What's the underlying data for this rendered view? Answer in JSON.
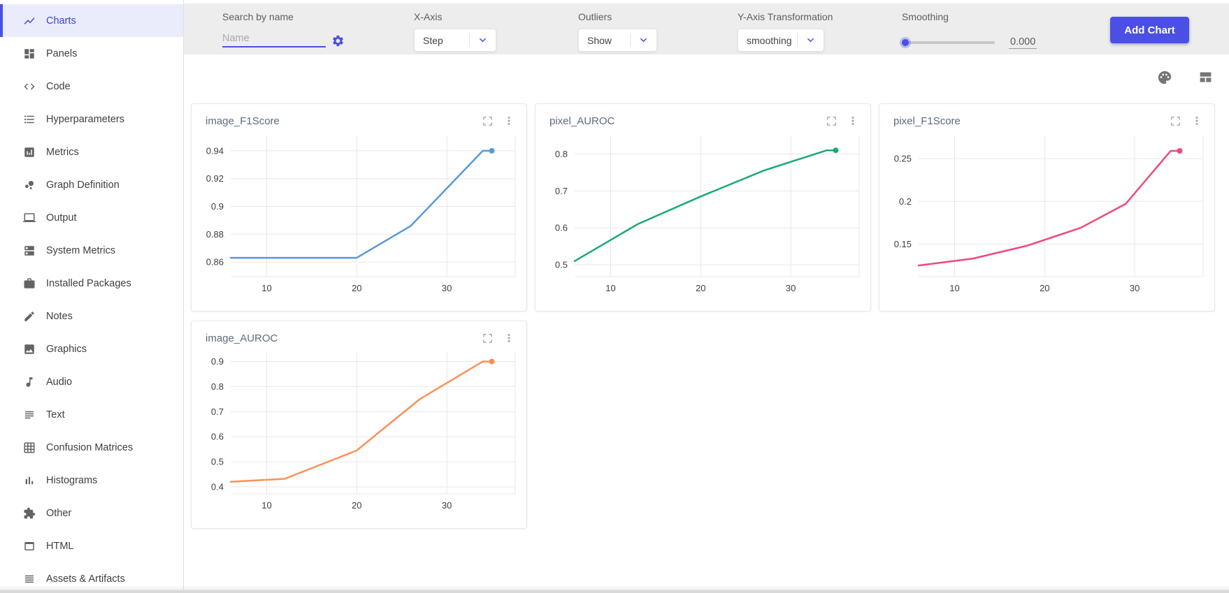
{
  "sidebar": {
    "active_color": "#4B4FE4",
    "items": [
      {
        "label": "Charts",
        "icon": "line-chart-icon",
        "active": true
      },
      {
        "label": "Panels",
        "icon": "dashboard-icon",
        "active": false
      },
      {
        "label": "Code",
        "icon": "code-icon",
        "active": false
      },
      {
        "label": "Hyperparameters",
        "icon": "list-icon",
        "active": false
      },
      {
        "label": "Metrics",
        "icon": "metrics-table-icon",
        "active": false
      },
      {
        "label": "Graph Definition",
        "icon": "bubble-chart-icon",
        "active": false
      },
      {
        "label": "Output",
        "icon": "laptop-icon",
        "active": false
      },
      {
        "label": "System Metrics",
        "icon": "server-icon",
        "active": false
      },
      {
        "label": "Installed Packages",
        "icon": "briefcase-icon",
        "active": false
      },
      {
        "label": "Notes",
        "icon": "pencil-icon",
        "active": false
      },
      {
        "label": "Graphics",
        "icon": "image-icon",
        "active": false
      },
      {
        "label": "Audio",
        "icon": "music-note-icon",
        "active": false
      },
      {
        "label": "Text",
        "icon": "text-lines-icon",
        "active": false
      },
      {
        "label": "Confusion Matrices",
        "icon": "grid-icon",
        "active": false
      },
      {
        "label": "Histograms",
        "icon": "histogram-icon",
        "active": false
      },
      {
        "label": "Other",
        "icon": "puzzle-icon",
        "active": false
      },
      {
        "label": "HTML",
        "icon": "browser-window-icon",
        "active": false
      },
      {
        "label": "Assets & Artifacts",
        "icon": "stacked-lines-icon",
        "active": false
      }
    ]
  },
  "toolbar": {
    "accent_color": "#4B4FE4",
    "search": {
      "label": "Search by name",
      "placeholder": "Name",
      "value": "",
      "icon": "gear-icon"
    },
    "x_axis": {
      "label": "X-Axis",
      "value": "Step",
      "icon": "chevron-down-icon"
    },
    "outliers": {
      "label": "Outliers",
      "value": "Show",
      "icon": "chevron-down-icon"
    },
    "y_axis_transformation": {
      "label": "Y-Axis Transformation",
      "value": "smoothing",
      "icon": "chevron-down-icon"
    },
    "smoothing": {
      "label": "Smoothing",
      "value": "0.000"
    },
    "add_chart_label": "Add Chart"
  },
  "content_header": {
    "icons": [
      "palette-icon",
      "layout-icon"
    ]
  },
  "card_icons": [
    "fullscreen-icon",
    "kebab-menu-icon"
  ],
  "chart_data": [
    {
      "type": "line",
      "title": "image_F1Score",
      "color": "#5899DA",
      "x": [
        6,
        12,
        20,
        26,
        34,
        35
      ],
      "y": [
        0.863,
        0.863,
        0.863,
        0.886,
        0.94,
        0.94
      ],
      "x_ticks": [
        10,
        20,
        30
      ],
      "x_tick_labels": [
        "10",
        "20",
        "30"
      ],
      "y_ticks": [
        0.86,
        0.88,
        0.9,
        0.92,
        0.94
      ],
      "y_tick_labels": [
        "0.86",
        "0.88",
        "0.9",
        "0.92",
        "0.94"
      ],
      "xlim": [
        6,
        37.6
      ],
      "ylim": [
        0.8495,
        0.951
      ],
      "grid": true,
      "end_marker": true
    },
    {
      "type": "line",
      "title": "pixel_AUROC",
      "color": "#19A979",
      "x": [
        6,
        13,
        20,
        27,
        34,
        35
      ],
      "y": [
        0.51,
        0.61,
        0.685,
        0.755,
        0.81,
        0.81
      ],
      "x_ticks": [
        10,
        20,
        30
      ],
      "x_tick_labels": [
        "10",
        "20",
        "30"
      ],
      "y_ticks": [
        0.5,
        0.6,
        0.7,
        0.8
      ],
      "y_tick_labels": [
        "0.5",
        "0.6",
        "0.7",
        "0.8"
      ],
      "xlim": [
        6,
        37.6
      ],
      "ylim": [
        0.468,
        0.85
      ],
      "grid": true,
      "end_marker": true
    },
    {
      "type": "line",
      "title": "pixel_F1Score",
      "color": "#ED4A7B",
      "x": [
        6,
        12,
        18,
        24,
        29,
        34,
        35
      ],
      "y": [
        0.125,
        0.133,
        0.148,
        0.169,
        0.197,
        0.259,
        0.259
      ],
      "x_ticks": [
        10,
        20,
        30
      ],
      "x_tick_labels": [
        "10",
        "20",
        "30"
      ],
      "y_ticks": [
        0.15,
        0.2,
        0.25
      ],
      "y_tick_labels": [
        "0.15",
        "0.2",
        "0.25"
      ],
      "xlim": [
        6,
        37.6
      ],
      "ylim": [
        0.112,
        0.277
      ],
      "grid": true,
      "end_marker": true
    },
    {
      "type": "line",
      "title": "image_AUROC",
      "color": "#F99157",
      "x": [
        6,
        12,
        20,
        27,
        34,
        35
      ],
      "y": [
        0.42,
        0.432,
        0.545,
        0.75,
        0.9,
        0.9
      ],
      "x_ticks": [
        10,
        20,
        30
      ],
      "x_tick_labels": [
        "10",
        "20",
        "30"
      ],
      "y_ticks": [
        0.4,
        0.5,
        0.6,
        0.7,
        0.8,
        0.9
      ],
      "y_tick_labels": [
        "0.4",
        "0.5",
        "0.6",
        "0.7",
        "0.8",
        "0.9"
      ],
      "xlim": [
        6,
        37.6
      ],
      "ylim": [
        0.372,
        0.935
      ],
      "grid": true,
      "end_marker": true
    }
  ]
}
